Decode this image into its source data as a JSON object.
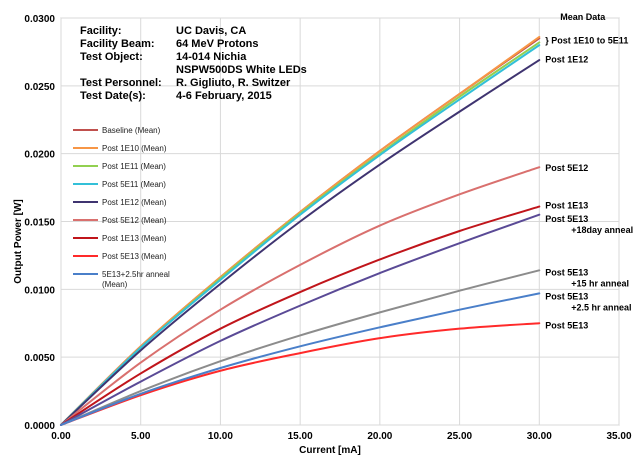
{
  "info": [
    {
      "key": "Facility:",
      "value": "UC Davis, CA"
    },
    {
      "key": "Facility Beam:",
      "value": "64 MeV Protons"
    },
    {
      "key": "Test Object:",
      "value": "14-014 Nichia"
    },
    {
      "key": "",
      "value": "NSPW500DS White LEDs"
    },
    {
      "key": "Test Personnel:",
      "value": "R. Gigliuto, R. Switzer"
    },
    {
      "key": "Test Date(s):",
      "value": "4-6 February, 2015"
    }
  ],
  "chart_data": {
    "type": "line",
    "xlabel": "Current  [mA]",
    "ylabel": "Output Power [W]",
    "xlim": [
      0,
      35
    ],
    "ylim": [
      0,
      0.03
    ],
    "x_ticks": [
      "0.00",
      "5.00",
      "10.00",
      "15.00",
      "20.00",
      "25.00",
      "30.00",
      "35.00"
    ],
    "y_ticks": [
      "0.0000",
      "0.0050",
      "0.0100",
      "0.0150",
      "0.0200",
      "0.0250",
      "0.0300"
    ],
    "grid": true,
    "legend_position": "left",
    "series": [
      {
        "name": "Baseline (Mean)",
        "color": "#c0504d",
        "x": [
          0,
          5,
          10,
          15,
          20,
          25,
          30
        ],
        "y": [
          0,
          0.0058,
          0.0109,
          0.0157,
          0.0202,
          0.0244,
          0.0285
        ]
      },
      {
        "name": "Post 1E10 (Mean)",
        "color": "#f79646",
        "x": [
          0,
          5,
          10,
          15,
          20,
          25,
          30
        ],
        "y": [
          0,
          0.0058,
          0.0109,
          0.0157,
          0.0202,
          0.0244,
          0.0286
        ]
      },
      {
        "name": "Post 1E11 (Mean)",
        "color": "#92d050",
        "x": [
          0,
          5,
          10,
          15,
          20,
          25,
          30
        ],
        "y": [
          0,
          0.0057,
          0.0108,
          0.0156,
          0.02,
          0.0242,
          0.0282
        ]
      },
      {
        "name": "Post 5E11 (Mean)",
        "color": "#33c0d8",
        "x": [
          0,
          5,
          10,
          15,
          20,
          25,
          30
        ],
        "y": [
          0,
          0.0057,
          0.0107,
          0.0155,
          0.0199,
          0.024,
          0.028
        ]
      },
      {
        "name": "Post 1E12 (Mean)",
        "color": "#3f3470",
        "x": [
          0,
          5,
          10,
          15,
          20,
          25,
          30
        ],
        "y": [
          0,
          0.0055,
          0.0104,
          0.015,
          0.0192,
          0.0231,
          0.0269
        ]
      },
      {
        "name": "Post 5E12 (Mean)",
        "color": "#d9706e",
        "x": [
          0,
          5,
          10,
          15,
          20,
          25,
          30
        ],
        "y": [
          0,
          0.0046,
          0.0085,
          0.0118,
          0.0147,
          0.017,
          0.019
        ]
      },
      {
        "name": "Post 1E13 (Mean)",
        "color": "#c0151b",
        "x": [
          0,
          5,
          10,
          15,
          20,
          25,
          30
        ],
        "y": [
          0,
          0.0038,
          0.0071,
          0.0098,
          0.0122,
          0.0143,
          0.0161
        ]
      },
      {
        "name": "Post 5E13 (Mean)",
        "color": "#ff2a2a",
        "x": [
          0,
          5,
          10,
          15,
          20,
          25,
          30
        ],
        "y": [
          0,
          0.0022,
          0.004,
          0.0053,
          0.0064,
          0.0071,
          0.0075
        ]
      },
      {
        "name": "Post 5E13 +18day anneal",
        "color": "#5a4a96",
        "x": [
          0,
          5,
          10,
          15,
          20,
          25,
          30
        ],
        "y": [
          0,
          0.0032,
          0.0062,
          0.0088,
          0.0112,
          0.0134,
          0.0155
        ]
      },
      {
        "name": "Post 5E13 +15 hr anneal",
        "color": "#8c8c8c",
        "x": [
          0,
          5,
          10,
          15,
          20,
          25,
          30
        ],
        "y": [
          0,
          0.0025,
          0.0047,
          0.0066,
          0.0083,
          0.0099,
          0.0114
        ]
      },
      {
        "name": "5E13+2.5hr anneal (Mean)",
        "color": "#4a7fc9",
        "x": [
          0,
          5,
          10,
          15,
          20,
          25,
          30
        ],
        "y": [
          0,
          0.0023,
          0.0042,
          0.0058,
          0.0072,
          0.0085,
          0.0097
        ]
      }
    ],
    "legend": [
      {
        "label": "Baseline (Mean)",
        "color": "#c0504d"
      },
      {
        "label": "Post 1E10 (Mean)",
        "color": "#f79646"
      },
      {
        "label": "Post 1E11 (Mean)",
        "color": "#92d050"
      },
      {
        "label": "Post 5E11 (Mean)",
        "color": "#33c0d8"
      },
      {
        "label": "Post 1E12 (Mean)",
        "color": "#3f3470"
      },
      {
        "label": "Post 5E12 (Mean)",
        "color": "#d9706e"
      },
      {
        "label": "Post 1E13 (Mean)",
        "color": "#c0151b"
      },
      {
        "label": "Post 5E13 (Mean)",
        "color": "#ff2a2a"
      },
      {
        "label": "5E13+2.5hr anneal",
        "label2": "(Mean)",
        "color": "#4a7fc9"
      }
    ],
    "annotations": [
      {
        "lines": [
          "Mean Data"
        ],
        "x": 30,
        "y": 0.0295
      },
      {
        "lines": [
          "}  Post 1E10 to 5E11"
        ],
        "x": 30,
        "y": 0.0285
      },
      {
        "lines": [
          "Post 1E12"
        ],
        "x": 30,
        "y": 0.027
      },
      {
        "lines": [
          "Post 5E12"
        ],
        "x": 30,
        "y": 0.019
      },
      {
        "lines": [
          "Post 1E13"
        ],
        "x": 30,
        "y": 0.0161
      },
      {
        "lines": [
          "Post 5E13",
          "+18day anneal"
        ],
        "x": 30,
        "y": 0.0154
      },
      {
        "lines": [
          "Post 5E13",
          "+15 hr anneal"
        ],
        "x": 30,
        "y": 0.0114
      },
      {
        "lines": [
          "Post 5E13",
          "+2.5 hr anneal"
        ],
        "x": 30,
        "y": 0.0097
      },
      {
        "lines": [
          "Post 5E13"
        ],
        "x": 30,
        "y": 0.0074
      }
    ]
  }
}
